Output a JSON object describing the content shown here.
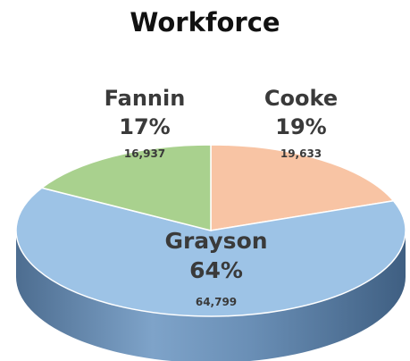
{
  "chart_data": {
    "type": "pie",
    "title": "Workforce",
    "style": "3d",
    "slices": [
      {
        "label": "Cooke",
        "percent_label": "19%",
        "value_label": "19,633",
        "value": 19633,
        "color": "#f8c4a4"
      },
      {
        "label": "Grayson",
        "percent_label": "64%",
        "value_label": "64,799",
        "value": 64799,
        "color": "#9dc3e6"
      },
      {
        "label": "Fannin",
        "percent_label": "17%",
        "value_label": "16,937",
        "value": 16937,
        "color": "#a9d18e"
      }
    ],
    "side_color": "#5f84ab"
  }
}
